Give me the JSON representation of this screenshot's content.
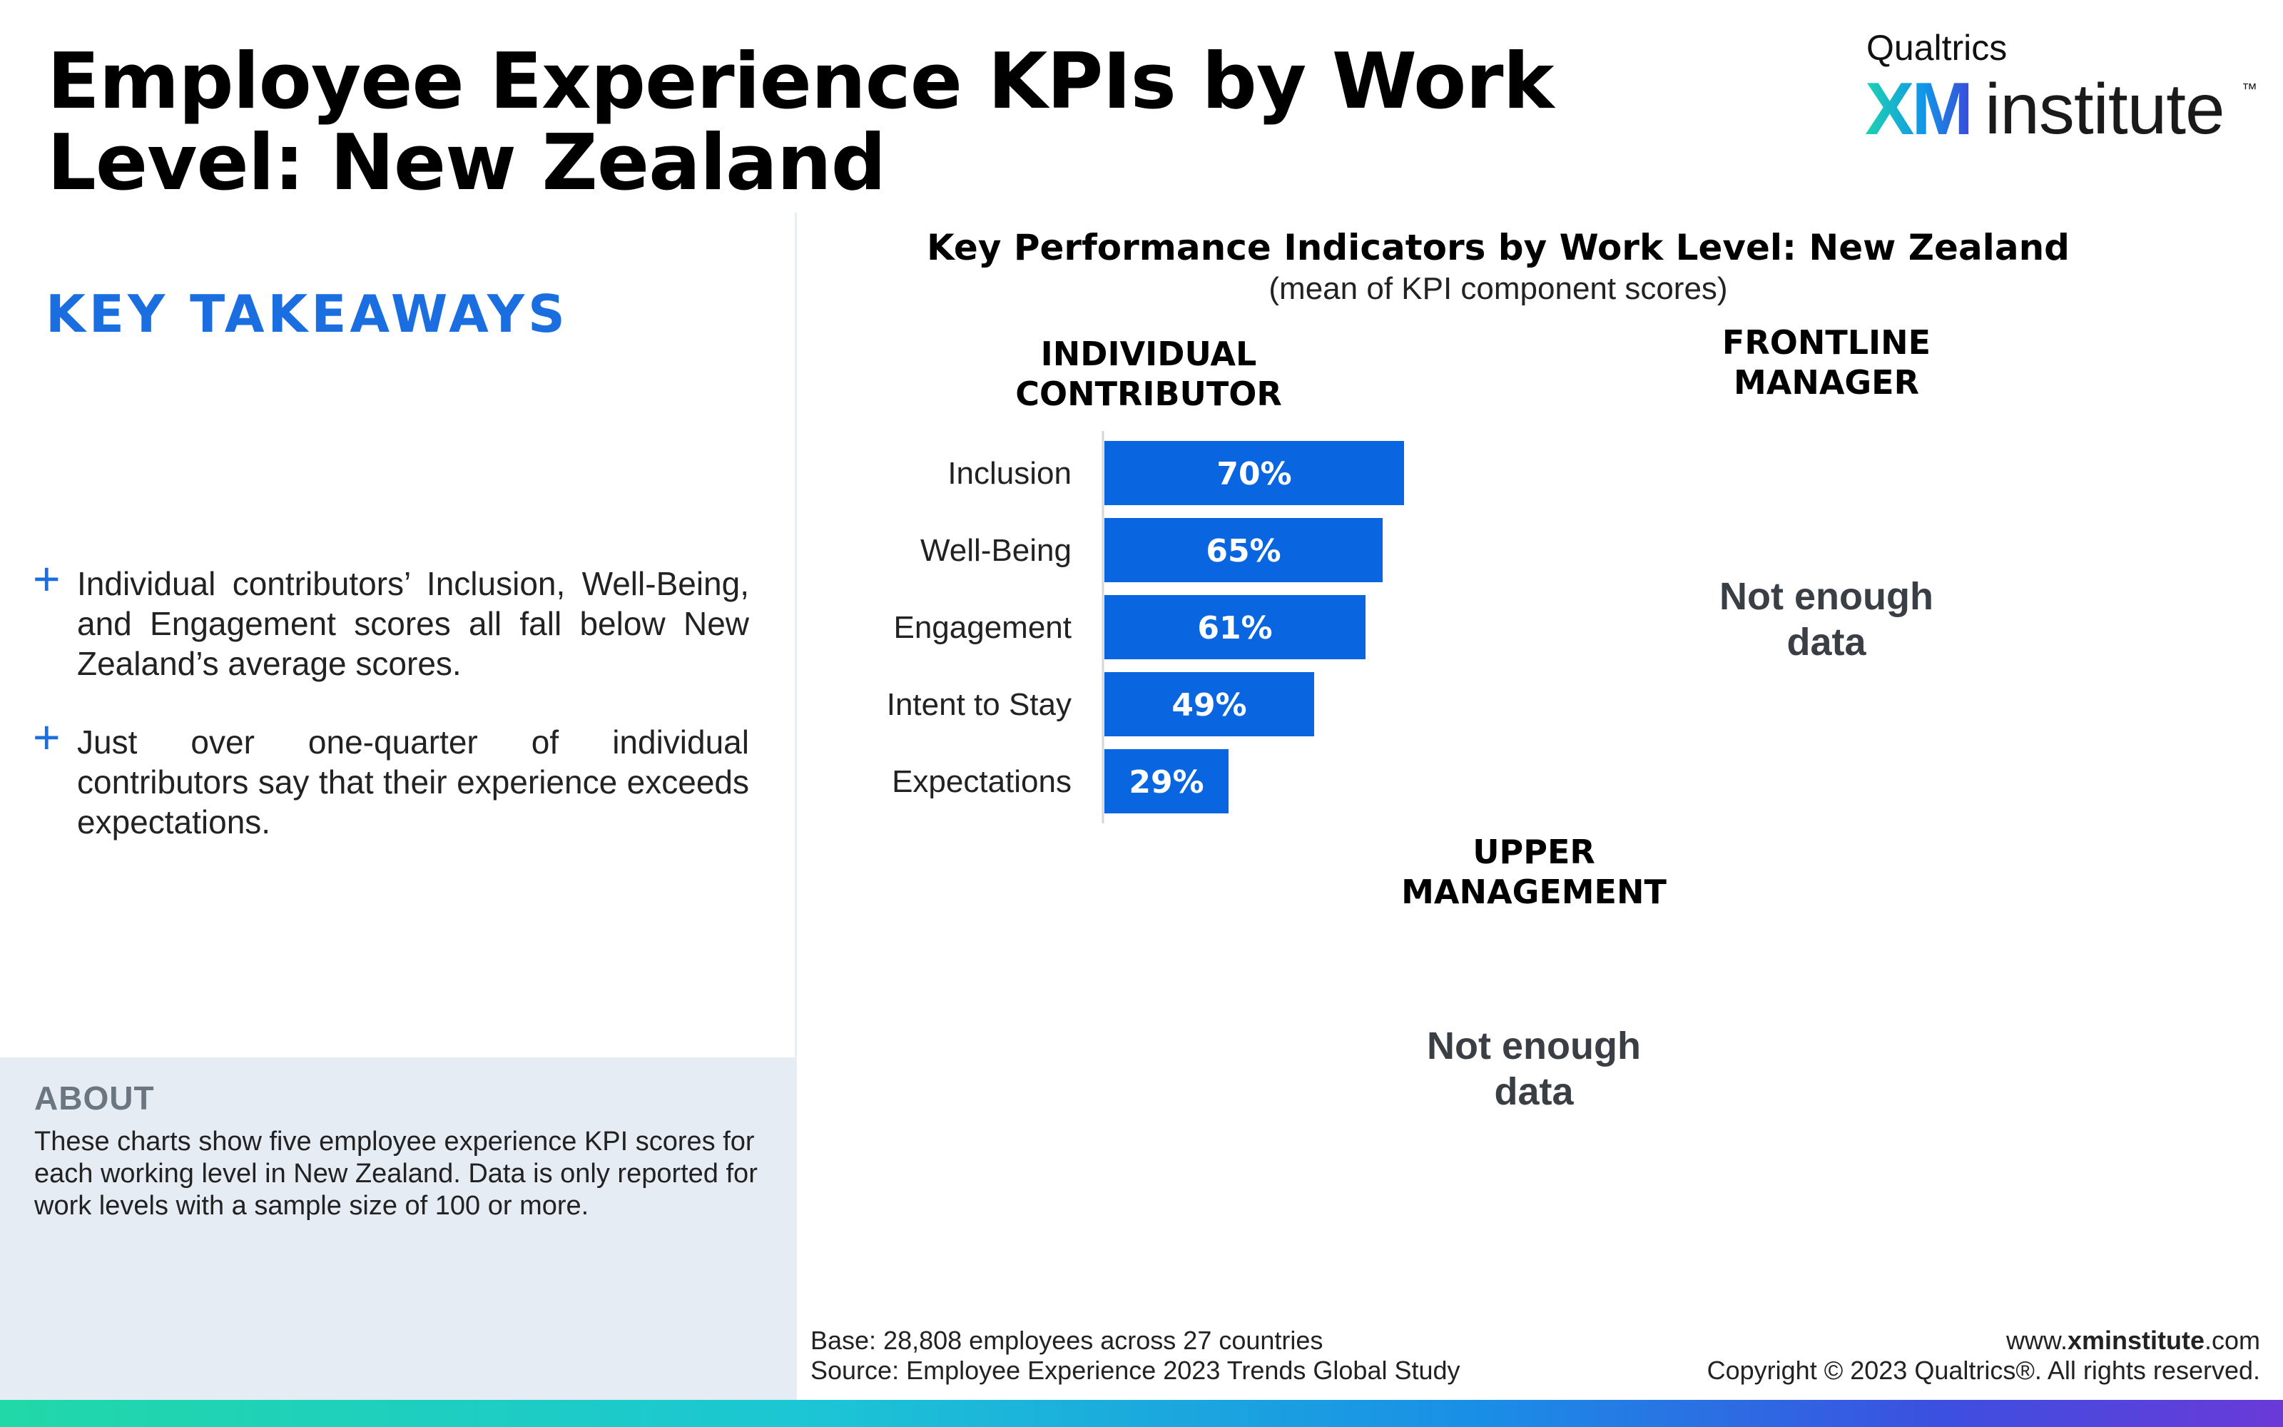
{
  "header": {
    "title": "Employee Experience KPIs by Work Level: New Zealand",
    "logo": {
      "company": "Qualtrics",
      "brand": "XM",
      "product": "institute",
      "tm": "™"
    }
  },
  "left_panel": {
    "heading": "KEY TAKEAWAYS",
    "takeaways": [
      "Individual contributors’ Inclusion, Well-Being, and Engagement scores all fall below New Zealand’s average scores.",
      "Just over one-quarter of individual contributors say that their experience exceeds expectations."
    ],
    "about": {
      "heading": "ABOUT",
      "text": "These charts show five employee experience KPI scores for each working level in New Zealand. Data is only reported for work levels with a sample size of 100 or more."
    }
  },
  "chart_data": {
    "type": "bar",
    "orientation": "horizontal",
    "title": "Key Performance Indicators by Work Level: New Zealand",
    "subtitle": "(mean of KPI component scores)",
    "xlim": [
      0,
      100
    ],
    "bar_color": "#0a66e0",
    "panels": [
      {
        "name": "INDIVIDUAL\nCONTRIBUTOR",
        "categories": [
          "Inclusion",
          "Well-Being",
          "Engagement",
          "Intent to Stay",
          "Expectations"
        ],
        "values": [
          70,
          65,
          61,
          49,
          29
        ],
        "labels": [
          "70%",
          "65%",
          "61%",
          "49%",
          "29%"
        ]
      },
      {
        "name": "FRONTLINE\nMANAGER",
        "message": "Not enough\ndata"
      },
      {
        "name": "UPPER\nMANAGEMENT",
        "message": "Not enough\ndata"
      }
    ]
  },
  "footer": {
    "base": "Base: 28,808 employees across 27 countries",
    "source": "Source: Employee Experience 2023 Trends Global Study",
    "url_prefix": "www.",
    "url_bold": "xminstitute",
    "url_suffix": ".com",
    "copyright": "Copyright © 2023 Qualtrics®. All rights reserved."
  }
}
